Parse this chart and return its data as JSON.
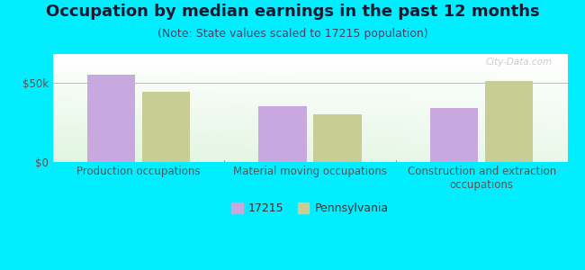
{
  "title": "Occupation by median earnings in the past 12 months",
  "subtitle": "(Note: State values scaled to 17215 population)",
  "categories": [
    "Production occupations",
    "Material moving occupations",
    "Construction and extraction\noccupations"
  ],
  "values_17215": [
    55000,
    35000,
    34000
  ],
  "values_pennsylvania": [
    44000,
    30000,
    51000
  ],
  "bar_color_17215": "#c9a8e0",
  "bar_color_pennsylvania": "#c8cd96",
  "background_outer": "#00eeff",
  "yticks": [
    0,
    50000
  ],
  "ytick_labels": [
    "$0",
    "$50k"
  ],
  "ylim": [
    0,
    68000
  ],
  "legend_label_17215": "17215",
  "legend_label_pa": "Pennsylvania",
  "watermark": "City-Data.com",
  "title_fontsize": 13,
  "subtitle_fontsize": 9,
  "tick_fontsize": 8.5,
  "legend_fontsize": 9,
  "bar_width": 0.28,
  "bar_gap": 0.04
}
